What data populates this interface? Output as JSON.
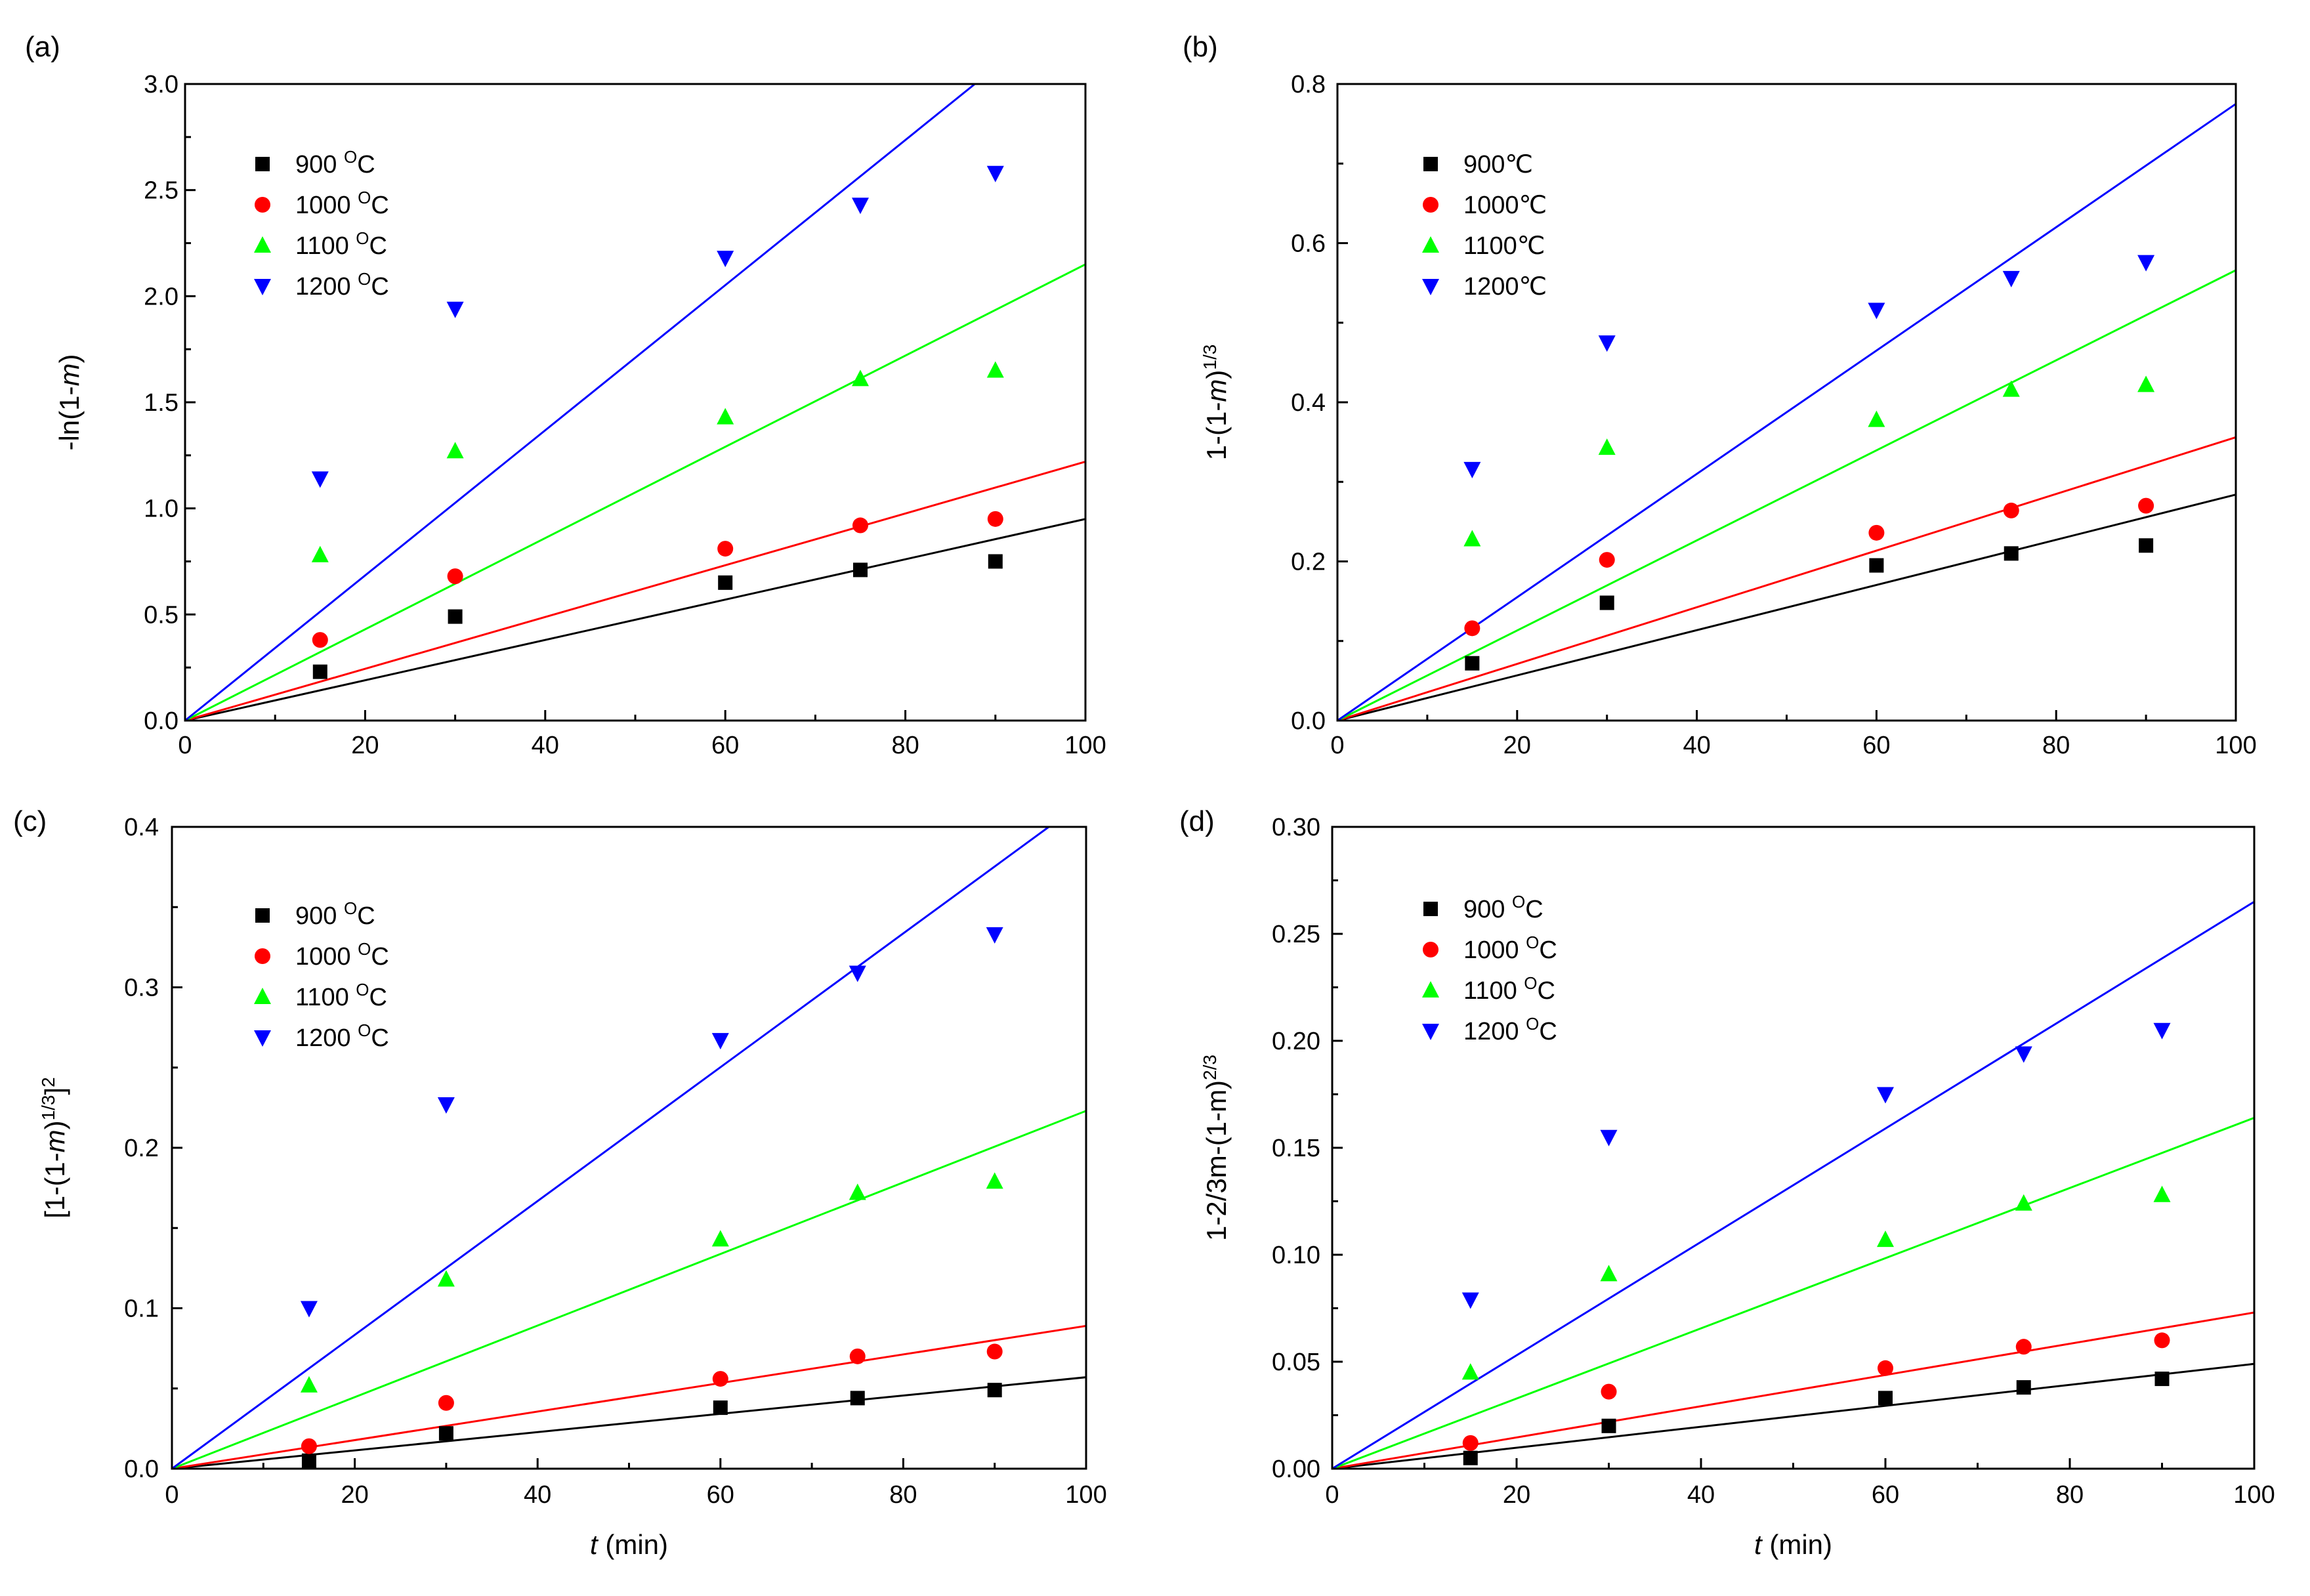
{
  "figure": {
    "x_values": [
      15,
      30,
      60,
      75,
      90
    ]
  },
  "colors": {
    "900": "#000000",
    "1000": "#ff0000",
    "1100": "#00ff00",
    "1200": "#0000ff"
  },
  "chart_data": [
    {
      "type": "scatter",
      "panel": "(a)",
      "ylabel": "-ln(1-m)",
      "xlabel": "",
      "xlim": [
        0,
        100
      ],
      "ylim": [
        0,
        3.0
      ],
      "xticks": [
        "0",
        "20",
        "40",
        "60",
        "80",
        "100"
      ],
      "yticks": [
        "0.0",
        "0.5",
        "1.0",
        "1.5",
        "2.0",
        "2.5",
        "3.0"
      ],
      "ytick_values": [
        0,
        0.5,
        1.0,
        1.5,
        2.0,
        2.5,
        3.0
      ],
      "legend": "top-left",
      "series": [
        {
          "name": "900 °C",
          "key": "900",
          "label_main": "900 ",
          "label_sup": "O",
          "label_end": "C",
          "marker": "square",
          "values": [
            0.23,
            0.49,
            0.65,
            0.71,
            0.75
          ],
          "fit_slope": 0.0095
        },
        {
          "name": "1000 °C",
          "key": "1000",
          "label_main": "1000 ",
          "label_sup": "O",
          "label_end": "C",
          "marker": "circle",
          "values": [
            0.38,
            0.68,
            0.81,
            0.92,
            0.95
          ],
          "fit_slope": 0.0122
        },
        {
          "name": "1100 °C",
          "key": "1100",
          "label_main": "1100 ",
          "label_sup": "O",
          "label_end": "C",
          "marker": "triangle-up",
          "values": [
            0.78,
            1.27,
            1.43,
            1.61,
            1.65
          ],
          "fit_slope": 0.0215
        },
        {
          "name": "1200 °C",
          "key": "1200",
          "label_main": "1200 ",
          "label_sup": "O",
          "label_end": "C",
          "marker": "triangle-down",
          "values": [
            1.14,
            1.94,
            2.18,
            2.43,
            2.58
          ],
          "fit_slope": 0.0342
        }
      ]
    },
    {
      "type": "scatter",
      "panel": "(b)",
      "ylabel": "1-(1-m)^1/3",
      "xlabel": "",
      "xlim": [
        0,
        100
      ],
      "ylim": [
        0,
        0.8
      ],
      "xticks": [
        "0",
        "20",
        "40",
        "60",
        "80",
        "100"
      ],
      "yticks": [
        "0.0",
        "0.2",
        "0.4",
        "0.6",
        "0.8"
      ],
      "ytick_values": [
        0,
        0.2,
        0.4,
        0.6,
        0.8
      ],
      "legend": "top-left",
      "series": [
        {
          "name": "900℃",
          "key": "900",
          "label_main": "900℃",
          "label_sup": "",
          "label_end": "",
          "marker": "square",
          "values": [
            0.072,
            0.148,
            0.195,
            0.21,
            0.22
          ],
          "fit_slope": 0.00284
        },
        {
          "name": "1000℃",
          "key": "1000",
          "label_main": "1000℃",
          "label_sup": "",
          "label_end": "",
          "marker": "circle",
          "values": [
            0.116,
            0.202,
            0.236,
            0.264,
            0.27
          ],
          "fit_slope": 0.00356
        },
        {
          "name": "1100℃",
          "key": "1100",
          "label_main": "1100℃",
          "label_sup": "",
          "label_end": "",
          "marker": "triangle-up",
          "values": [
            0.228,
            0.343,
            0.378,
            0.416,
            0.422
          ],
          "fit_slope": 0.00566
        },
        {
          "name": "1200℃",
          "key": "1200",
          "label_main": "1200℃",
          "label_sup": "",
          "label_end": "",
          "marker": "triangle-down",
          "values": [
            0.316,
            0.475,
            0.516,
            0.556,
            0.576
          ],
          "fit_slope": 0.00775
        }
      ]
    },
    {
      "type": "scatter",
      "panel": "(c)",
      "ylabel": "[1-(1-m)^1/3]^2",
      "xlabel": "t (min)",
      "xlim": [
        0,
        100
      ],
      "ylim": [
        0,
        0.4
      ],
      "xticks": [
        "0",
        "20",
        "40",
        "60",
        "80",
        "100"
      ],
      "yticks": [
        "0.0",
        "0.1",
        "0.2",
        "0.3",
        "0.4"
      ],
      "ytick_values": [
        0,
        0.1,
        0.2,
        0.3,
        0.4
      ],
      "legend": "top-left",
      "series": [
        {
          "name": "900 °C",
          "key": "900",
          "label_main": "900 ",
          "label_sup": "O",
          "label_end": "C",
          "marker": "square",
          "values": [
            0.005,
            0.022,
            0.038,
            0.044,
            0.049
          ],
          "fit_slope": 0.00057
        },
        {
          "name": "1000 °C",
          "key": "1000",
          "label_main": "1000 ",
          "label_sup": "O",
          "label_end": "C",
          "marker": "circle",
          "values": [
            0.014,
            0.041,
            0.056,
            0.07,
            0.073
          ],
          "fit_slope": 0.00089
        },
        {
          "name": "1100 °C",
          "key": "1100",
          "label_main": "1100 ",
          "label_sup": "O",
          "label_end": "C",
          "marker": "triangle-up",
          "values": [
            0.052,
            0.118,
            0.143,
            0.172,
            0.179
          ],
          "fit_slope": 0.00223
        },
        {
          "name": "1200 °C",
          "key": "1200",
          "label_main": "1200 ",
          "label_sup": "O",
          "label_end": "C",
          "marker": "triangle-down",
          "values": [
            0.1,
            0.227,
            0.267,
            0.309,
            0.333
          ],
          "fit_slope": 0.00417
        }
      ]
    },
    {
      "type": "scatter",
      "panel": "(d)",
      "ylabel": "1-2/3m-(1-m)^2/3",
      "xlabel": "t (min)",
      "xlim": [
        0,
        100
      ],
      "ylim": [
        0,
        0.3
      ],
      "xticks": [
        "0",
        "20",
        "40",
        "60",
        "80",
        "100"
      ],
      "yticks": [
        "0.00",
        "0.05",
        "0.10",
        "0.15",
        "0.20",
        "0.25",
        "0.30"
      ],
      "ytick_values": [
        0,
        0.05,
        0.1,
        0.15,
        0.2,
        0.25,
        0.3
      ],
      "legend": "top-left",
      "series": [
        {
          "name": "900 °C",
          "key": "900",
          "label_main": "900 ",
          "label_sup": "O",
          "label_end": "C",
          "marker": "square",
          "values": [
            0.005,
            0.02,
            0.033,
            0.038,
            0.042
          ],
          "fit_slope": 0.00049
        },
        {
          "name": "1000 °C",
          "key": "1000",
          "label_main": "1000 ",
          "label_sup": "O",
          "label_end": "C",
          "marker": "circle",
          "values": [
            0.012,
            0.036,
            0.047,
            0.057,
            0.06
          ],
          "fit_slope": 0.00073
        },
        {
          "name": "1100 °C",
          "key": "1100",
          "label_main": "1100 ",
          "label_sup": "O",
          "label_end": "C",
          "marker": "triangle-up",
          "values": [
            0.045,
            0.091,
            0.107,
            0.124,
            0.128
          ],
          "fit_slope": 0.00164
        },
        {
          "name": "1200 °C",
          "key": "1200",
          "label_main": "1200 ",
          "label_sup": "O",
          "label_end": "C",
          "marker": "triangle-down",
          "values": [
            0.079,
            0.155,
            0.175,
            0.194,
            0.205
          ],
          "fit_slope": 0.00265
        }
      ]
    }
  ]
}
